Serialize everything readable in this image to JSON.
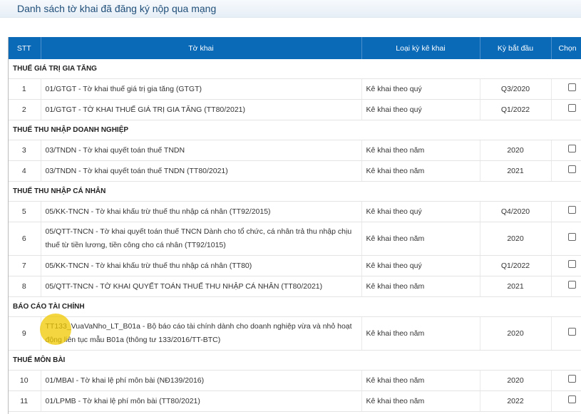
{
  "title": "Danh sách tờ khai đã đăng ký nộp qua mạng",
  "columns": [
    "STT",
    "Tờ khai",
    "Loại kỳ kê khai",
    "Kỳ bắt đầu",
    "Chọn"
  ],
  "groups": [
    {
      "name": "THUẾ GIÁ TRỊ GIA TĂNG",
      "rows": [
        {
          "stt": "1",
          "form": "01/GTGT - Tờ khai thuế giá trị gia tăng (GTGT)",
          "type": "Kê khai theo quý",
          "start": "Q3/2020",
          "checked": false
        },
        {
          "stt": "2",
          "form": "01/GTGT - TỜ KHAI THUẾ GIÁ TRỊ GIA TĂNG (TT80/2021)",
          "type": "Kê khai theo quý",
          "start": "Q1/2022",
          "checked": false
        }
      ]
    },
    {
      "name": "THUẾ THU NHẬP DOANH NGHIỆP",
      "rows": [
        {
          "stt": "3",
          "form": "03/TNDN - Tờ khai quyết toán thuế TNDN",
          "type": "Kê khai theo năm",
          "start": "2020",
          "checked": false
        },
        {
          "stt": "4",
          "form": "03/TNDN - Tờ khai quyết toán thuế TNDN (TT80/2021)",
          "type": "Kê khai theo năm",
          "start": "2021",
          "checked": false
        }
      ]
    },
    {
      "name": "THUẾ THU NHẬP CÁ NHÂN",
      "rows": [
        {
          "stt": "5",
          "form": "05/KK-TNCN - Tờ khai khấu trừ thuế thu nhập cá nhân (TT92/2015)",
          "type": "Kê khai theo quý",
          "start": "Q4/2020",
          "checked": false
        },
        {
          "stt": "6",
          "form": "05/QTT-TNCN - Tờ khai quyết toán thuế TNCN Dành cho tổ chức, cá nhân trả thu nhập chịu thuế từ tiền lương, tiền công cho cá nhân (TT92/1015)",
          "type": "Kê khai theo năm",
          "start": "2020",
          "checked": false
        },
        {
          "stt": "7",
          "form": "05/KK-TNCN - Tờ khai khấu trừ thuế thu nhập cá nhân (TT80)",
          "type": "Kê khai theo quý",
          "start": "Q1/2022",
          "checked": false
        },
        {
          "stt": "8",
          "form": "05/QTT-TNCN - TỜ KHAI QUYẾT TOÁN THUẾ THU NHẬP CÁ NHÂN (TT80/2021)",
          "type": "Kê khai theo năm",
          "start": "2021",
          "checked": false
        }
      ]
    },
    {
      "name": "BÁO CÁO TÀI CHÍNH",
      "rows": [
        {
          "stt": "9",
          "form": "TT133_VuaVaNho_LT_B01a - Bộ báo cáo tài chính dành cho doanh nghiệp vừa và nhỏ hoạt động liên tục mẫu B01a (thông tư 133/2016/TT-BTC)",
          "type": "Kê khai theo năm",
          "start": "2020",
          "checked": false
        }
      ]
    },
    {
      "name": "THUẾ MÔN BÀI",
      "rows": [
        {
          "stt": "10",
          "form": "01/MBAI - Tờ khai lệ phí môn bài (NĐ139/2016)",
          "type": "Kê khai theo năm",
          "start": "2020",
          "checked": false
        },
        {
          "stt": "11",
          "form": "01/LPMB - Tờ khai lệ phí môn bài (TT80/2021)",
          "type": "Kê khai theo năm",
          "start": "2022",
          "checked": false
        }
      ]
    }
  ],
  "colors": {
    "header": "#0a6ab8",
    "title": "#1f4e79",
    "cursor_highlight": "#f0c800"
  }
}
